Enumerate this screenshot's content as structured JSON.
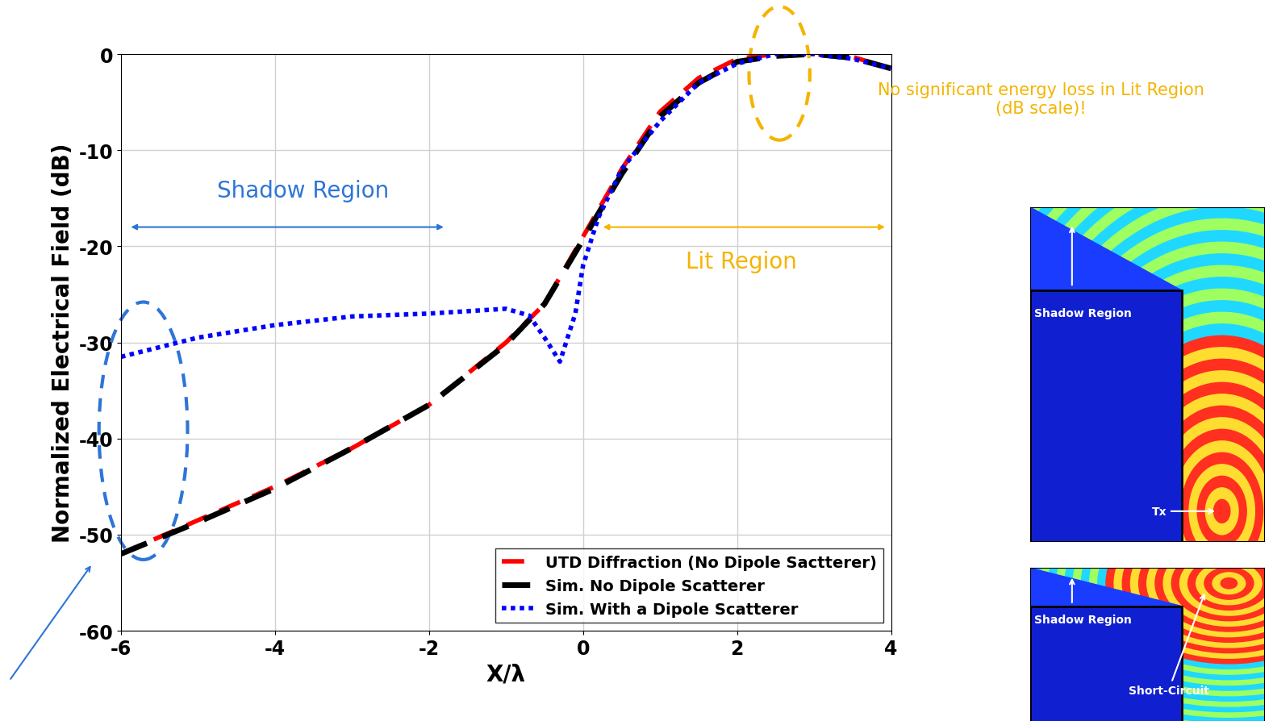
{
  "chart_data": {
    "type": "line",
    "xlabel": "X/λ",
    "ylabel": "Normalized Electrical Field (dB)",
    "xlim": [
      -6,
      4
    ],
    "xticks": [
      -6,
      -4,
      -2,
      0,
      2,
      4
    ],
    "ylim": [
      -60,
      0
    ],
    "yticks": [
      -60,
      -50,
      -40,
      -30,
      -20,
      -10,
      0
    ],
    "grid": true,
    "legend": "lower right",
    "series": [
      {
        "name": "UTD Diffraction (No Dipole Sactterer)",
        "color": "#ff0000",
        "line_style": "dashed",
        "x": [
          -6,
          -5,
          -4,
          -3,
          -2,
          -1,
          -0.5,
          0,
          0.5,
          1,
          1.5,
          2,
          2.5,
          3,
          3.5,
          4
        ],
        "values": [
          -52,
          -48.5,
          -45,
          -41,
          -36.5,
          -30,
          -26,
          -19,
          -12,
          -6,
          -2.5,
          -0.5,
          0,
          0,
          -0.3,
          -1.5
        ]
      },
      {
        "name": "Sim. No Dipole Scatterer",
        "color": "#000000",
        "line_style": "dashed",
        "x": [
          -6,
          -5,
          -4,
          -3,
          -2,
          -1,
          -0.5,
          0,
          0.5,
          1,
          1.5,
          2,
          2.5,
          3,
          3.5,
          4
        ],
        "values": [
          -52,
          -48.7,
          -45.2,
          -41,
          -36.5,
          -30.2,
          -26,
          -19.3,
          -12.5,
          -6.5,
          -3,
          -0.8,
          -0.2,
          0,
          -0.4,
          -1.5
        ]
      },
      {
        "name": "Sim. With a Dipole Scatterer",
        "color": "#0000ff",
        "line_style": "dotted",
        "x": [
          -6,
          -5,
          -4,
          -3,
          -2,
          -1,
          -0.7,
          -0.5,
          -0.3,
          -0.1,
          0,
          0.2,
          0.5,
          1,
          1.5,
          2,
          2.5,
          3,
          3.5,
          4
        ],
        "values": [
          -31.5,
          -29.5,
          -28.2,
          -27.3,
          -27,
          -26.5,
          -27.2,
          -29.5,
          -32,
          -27,
          -22,
          -17,
          -12,
          -7,
          -3,
          -1,
          0,
          0,
          -0.5,
          -1.5
        ]
      }
    ],
    "annotations": {
      "shadow": "Shadow Region",
      "lit": "Lit Region",
      "note": "No significant energy loss in Lit Region\n(dB scale)!"
    }
  },
  "panels": [
    {
      "labels": [
        "Shadow Region",
        "Tx"
      ]
    },
    {
      "labels": [
        "Shadow Region",
        "Short-Circuit"
      ]
    }
  ]
}
